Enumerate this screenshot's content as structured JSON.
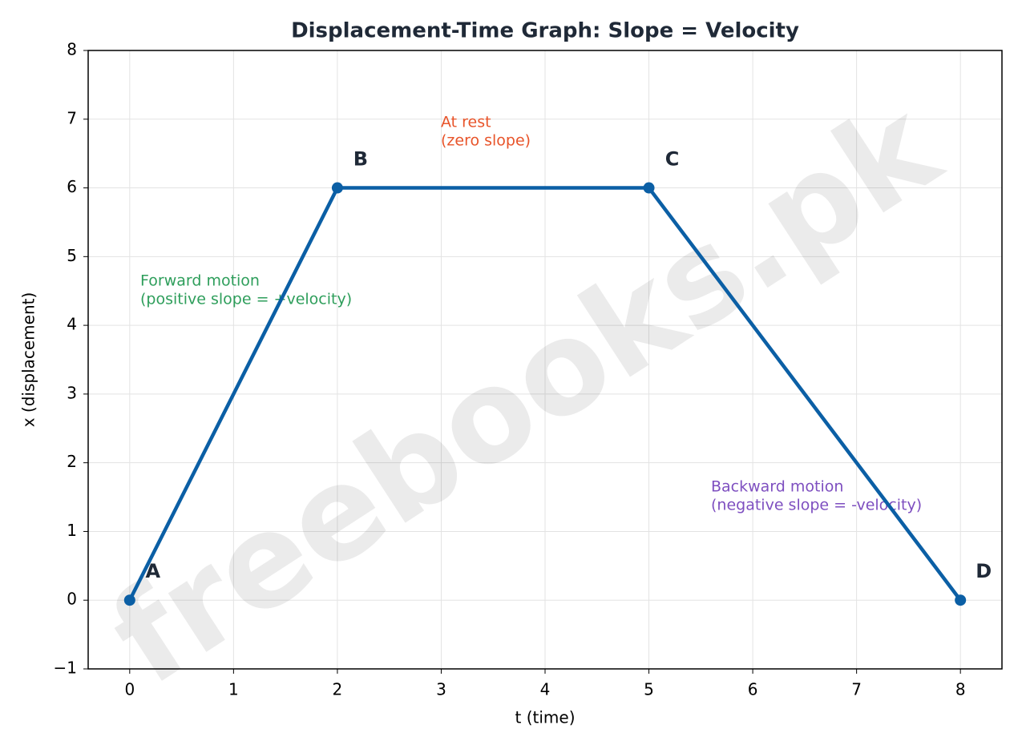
{
  "chart_data": {
    "type": "line",
    "title": "Displacement-Time Graph: Slope = Velocity",
    "x_label": "t (time)",
    "y_label": "x (displacement)",
    "x": [
      0,
      2,
      5,
      8
    ],
    "series": [
      {
        "color": "#0b5fa5",
        "values": [
          0,
          6,
          6,
          0
        ]
      }
    ],
    "point_labels": [
      "A",
      "B",
      "C",
      "D"
    ],
    "annotations": [
      {
        "lines": [
          "Forward motion",
          "(positive slope = +velocity)"
        ],
        "color": "#2e9e5b"
      },
      {
        "lines": [
          "At rest",
          "(zero slope)"
        ],
        "color": "#e8542a"
      },
      {
        "lines": [
          "Backward motion",
          "(negative slope = -velocity)"
        ],
        "color": "#7e4fc0"
      }
    ],
    "watermark": "freebooks.pk",
    "xlim": [
      -0.4,
      8.4
    ],
    "ylim": [
      -1,
      8
    ],
    "xticks": [
      0,
      1,
      2,
      3,
      4,
      5,
      6,
      7,
      8
    ],
    "yticks": [
      {
        "value": -1,
        "label": "−1"
      },
      0,
      1,
      2,
      3,
      4,
      5,
      6,
      7,
      8
    ],
    "grid": true
  }
}
